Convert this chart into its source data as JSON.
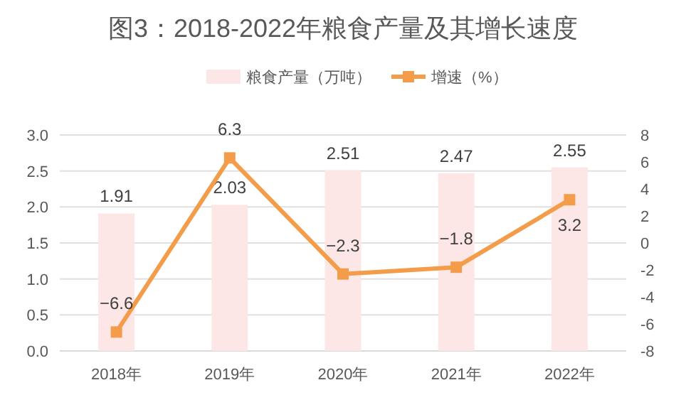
{
  "chart_data": {
    "type": "bar",
    "title": "图3：2018-2022年粮食产量及其增长速度",
    "categories": [
      "2018年",
      "2019年",
      "2020年",
      "2021年",
      "2022年"
    ],
    "series": [
      {
        "name": "粮食产量（万吨）",
        "color": "#fde6e6",
        "values": [
          1.91,
          2.03,
          2.51,
          2.47,
          2.55
        ]
      },
      {
        "name": "增速（%）",
        "type": "line",
        "axis": "y2",
        "color": "#f39c4a",
        "marker": "square",
        "values": [
          -6.6,
          6.3,
          -2.3,
          -1.8,
          3.2
        ]
      }
    ],
    "ylim": [
      0,
      3
    ],
    "yticks": [
      {
        "value": 0,
        "label": "0.0"
      },
      {
        "value": 0.5,
        "label": "0.5"
      },
      {
        "value": 1,
        "label": "1.0"
      },
      {
        "value": 1.5,
        "label": "1.5"
      },
      {
        "value": 2,
        "label": "2.0"
      },
      {
        "value": 2.5,
        "label": "2.5"
      },
      {
        "value": 3,
        "label": "3.0"
      }
    ],
    "y2lim": [
      -8,
      8
    ],
    "y2ticks": [
      -8,
      -6,
      -4,
      -2,
      0,
      2,
      4,
      6,
      8
    ],
    "grid": "y",
    "legend": "top",
    "data_labels": true
  }
}
